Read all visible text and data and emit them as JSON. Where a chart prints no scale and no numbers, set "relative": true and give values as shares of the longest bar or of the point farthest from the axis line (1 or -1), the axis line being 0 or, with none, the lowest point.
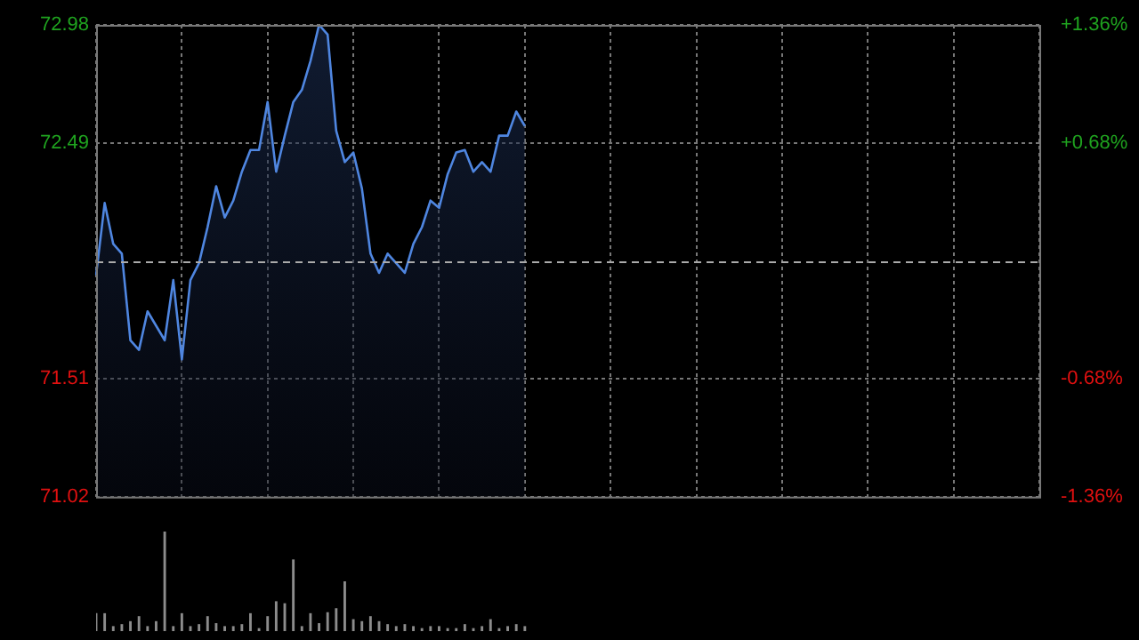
{
  "chart_data": [
    {
      "type": "area",
      "categories": [
        null,
        null,
        null,
        null,
        null,
        null,
        null,
        null,
        null,
        null,
        null,
        null,
        null,
        null,
        null,
        null,
        null,
        null,
        null,
        null,
        null,
        null,
        null,
        null,
        null,
        null,
        null,
        null,
        null,
        null,
        null,
        null,
        null,
        null,
        null,
        null,
        null,
        null,
        null,
        null,
        null,
        null,
        null,
        null,
        null,
        null,
        null,
        null,
        null,
        null,
        null,
        null,
        null,
        null,
        null,
        null,
        null,
        null,
        null,
        null,
        null,
        null,
        null,
        null,
        null,
        null,
        null,
        null,
        null,
        null,
        null,
        null,
        null,
        null,
        null,
        null,
        null,
        null,
        null,
        null,
        null,
        null,
        null,
        null,
        null,
        null,
        null,
        null,
        null,
        null,
        null,
        null,
        null,
        null,
        null,
        null,
        null,
        null,
        null,
        null,
        null,
        null,
        null,
        null,
        null,
        null,
        null,
        null,
        null,
        null,
        null
      ],
      "values": [
        71.94,
        72.24,
        72.07,
        72.03,
        71.67,
        71.63,
        71.79,
        71.73,
        71.67,
        71.92,
        71.59,
        71.92,
        71.99,
        72.14,
        72.31,
        72.18,
        72.25,
        72.37,
        72.46,
        72.46,
        72.66,
        72.37,
        72.52,
        72.66,
        72.71,
        72.83,
        72.98,
        72.94,
        72.54,
        72.41,
        72.45,
        72.3,
        72.03,
        71.95,
        72.03,
        71.99,
        71.95,
        72.07,
        72.14,
        72.25,
        72.22,
        72.36,
        72.45,
        72.46,
        72.37,
        72.41,
        72.37,
        72.52,
        72.52,
        72.62,
        72.56,
        null,
        null,
        null,
        null,
        null,
        null,
        null,
        null,
        null,
        null,
        null,
        null,
        null,
        null,
        null,
        null,
        null,
        null,
        null,
        null,
        null,
        null,
        null,
        null,
        null,
        null,
        null,
        null,
        null,
        null,
        null,
        null,
        null,
        null,
        null,
        null,
        null,
        null,
        null,
        null,
        null,
        null,
        null,
        null,
        null,
        null,
        null,
        null,
        null,
        null,
        null,
        null,
        null,
        null,
        null,
        null,
        null,
        null,
        null,
        null
      ],
      "color": "#4f86e0",
      "ylim": [
        71.02,
        72.98
      ],
      "yticks": [
        71.02,
        71.51,
        72.49,
        72.98
      ],
      "y2lim": [
        -1.36,
        1.36
      ],
      "y2ticks": [
        {
          "value": -1.36,
          "label": "-1.36%"
        },
        {
          "value": -0.68,
          "label": "-0.68%"
        },
        {
          "value": 0.68,
          "label": "+0.68%"
        },
        {
          "value": 1.36,
          "label": "+1.36%"
        }
      ],
      "ref_lines": [
        {
          "axis": "y",
          "value": 72,
          "line_style": "dashed"
        }
      ],
      "grid": true
    },
    {
      "type": "bar",
      "categories": [
        null,
        null,
        null,
        null,
        null,
        null,
        null,
        null,
        null,
        null,
        null,
        null,
        null,
        null,
        null,
        null,
        null,
        null,
        null,
        null,
        null,
        null,
        null,
        null,
        null,
        null,
        null,
        null,
        null,
        null,
        null,
        null,
        null,
        null,
        null,
        null,
        null,
        null,
        null,
        null,
        null,
        null,
        null,
        null,
        null,
        null,
        null,
        null,
        null,
        null,
        null,
        null,
        null,
        null,
        null,
        null,
        null,
        null,
        null,
        null,
        null,
        null,
        null,
        null,
        null,
        null,
        null,
        null,
        null,
        null,
        null,
        null,
        null,
        null,
        null,
        null,
        null,
        null,
        null,
        null,
        null,
        null,
        null,
        null,
        null,
        null,
        null,
        null,
        null,
        null,
        null,
        null,
        null,
        null,
        null,
        null,
        null,
        null,
        null,
        null,
        null,
        null,
        null,
        null,
        null,
        null,
        null,
        null,
        null,
        null,
        null
      ],
      "values": [
        0.18,
        0.18,
        0.05,
        0.07,
        0.1,
        0.15,
        0.05,
        0.1,
        1,
        0.05,
        0.18,
        0.05,
        0.07,
        0.15,
        0.08,
        0.05,
        0.05,
        0.07,
        0.18,
        0.03,
        0.15,
        0.3,
        0.28,
        0.72,
        0.05,
        0.18,
        0.08,
        0.19,
        0.23,
        0.5,
        0.12,
        0.1,
        0.15,
        0.1,
        0.07,
        0.05,
        0.07,
        0.05,
        0.03,
        0.05,
        0.05,
        0.03,
        0.03,
        0.07,
        0.03,
        0.05,
        0.12,
        0.03,
        0.05,
        0.07,
        0.05,
        null,
        null,
        null,
        null,
        null,
        null,
        null,
        null,
        null,
        null,
        null,
        null,
        null,
        null,
        null,
        null,
        null,
        null,
        null,
        null,
        null,
        null,
        null,
        null,
        null,
        null,
        null,
        null,
        null,
        null,
        null,
        null,
        null,
        null,
        null,
        null,
        null,
        null,
        null,
        null,
        null,
        null,
        null,
        null,
        null,
        null,
        null,
        null,
        null,
        null,
        null,
        null,
        null,
        null,
        null,
        null,
        null,
        null,
        null,
        null
      ],
      "color": "#8c8c8c",
      "relative": true
    }
  ]
}
